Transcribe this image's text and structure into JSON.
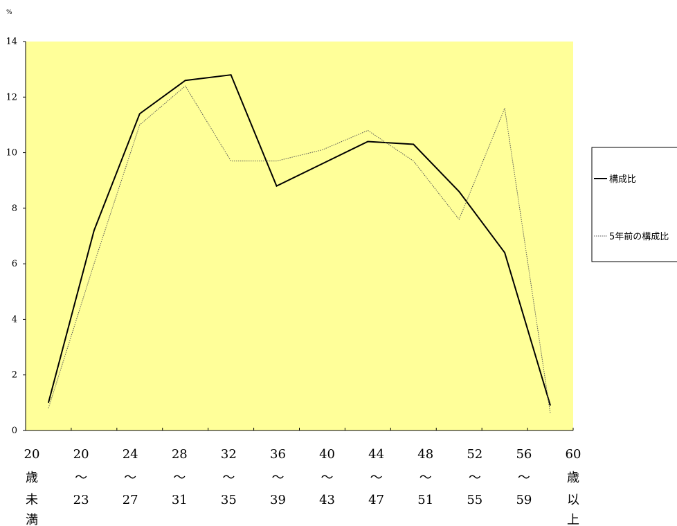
{
  "chart_data": {
    "type": "line",
    "unit_label": "%",
    "ylim": [
      0,
      14
    ],
    "y_ticks": [
      0,
      2,
      4,
      6,
      8,
      10,
      12,
      14
    ],
    "grid": false,
    "background_color": "#ffff99",
    "legend_position": "right",
    "category_labels": [
      [
        "20",
        "歳",
        "未",
        "満"
      ],
      [
        "20",
        "〜",
        "23"
      ],
      [
        "24",
        "〜",
        "27"
      ],
      [
        "28",
        "〜",
        "31"
      ],
      [
        "32",
        "〜",
        "35"
      ],
      [
        "36",
        "〜",
        "39"
      ],
      [
        "40",
        "〜",
        "43"
      ],
      [
        "44",
        "〜",
        "47"
      ],
      [
        "48",
        "〜",
        "51"
      ],
      [
        "52",
        "〜",
        "55"
      ],
      [
        "56",
        "〜",
        "59"
      ],
      [
        "60",
        "歳",
        "以",
        "上"
      ]
    ],
    "series": [
      {
        "name": "構成比",
        "color": "#000000",
        "style": "solid",
        "values": [
          1.0,
          7.2,
          11.4,
          12.6,
          12.8,
          8.8,
          9.6,
          10.4,
          10.3,
          8.6,
          6.4,
          0.9
        ]
      },
      {
        "name": "5年前の構成比",
        "color": "#555555",
        "style": "dotted",
        "values": [
          0.8,
          6.0,
          11.0,
          12.4,
          9.7,
          9.7,
          10.1,
          10.8,
          9.7,
          7.6,
          11.6,
          0.6
        ]
      }
    ]
  }
}
